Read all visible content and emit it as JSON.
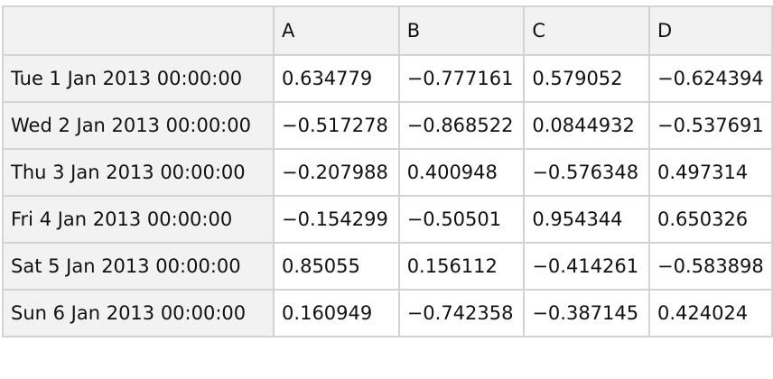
{
  "table": {
    "columns": [
      "A",
      "B",
      "C",
      "D"
    ],
    "rows": [
      {
        "label": "Tue 1 Jan 2013 00:00:00",
        "values": [
          "0.634779",
          "−0.777161",
          "0.579052",
          "−0.624394"
        ]
      },
      {
        "label": "Wed 2 Jan 2013 00:00:00",
        "values": [
          "−0.517278",
          "−0.868522",
          "0.0844932",
          "−0.537691"
        ]
      },
      {
        "label": "Thu 3 Jan 2013 00:00:00",
        "values": [
          "−0.207988",
          "0.400948",
          "−0.576348",
          "0.497314"
        ]
      },
      {
        "label": "Fri 4 Jan 2013 00:00:00",
        "values": [
          "−0.154299",
          "−0.50501",
          "0.954344",
          "0.650326"
        ]
      },
      {
        "label": "Sat 5 Jan 2013 00:00:00",
        "values": [
          "0.85055",
          "0.156112",
          "−0.414261",
          "−0.583898"
        ]
      },
      {
        "label": "Sun 6 Jan 2013 00:00:00",
        "values": [
          "0.160949",
          "−0.742358",
          "−0.387145",
          "0.424024"
        ]
      }
    ]
  }
}
